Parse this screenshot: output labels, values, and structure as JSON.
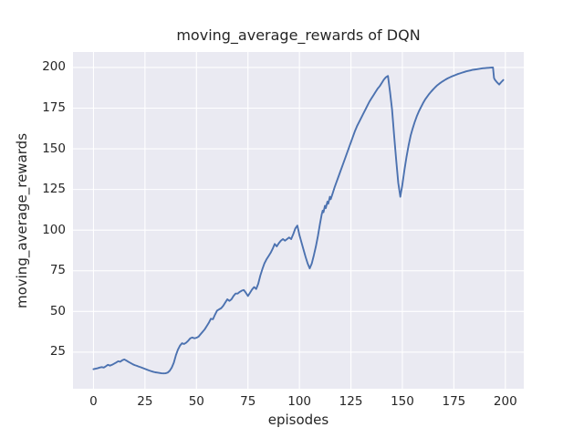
{
  "figure": {
    "title": "moving_average_rewards of DQN",
    "xlabel": "episodes",
    "ylabel": "moving_average_rewards"
  },
  "chart_data": {
    "type": "line",
    "title": "moving_average_rewards of DQN",
    "xlabel": "episodes",
    "ylabel": "moving_average_rewards",
    "xlim": [
      -9.95,
      208.95
    ],
    "ylim": [
      2.5,
      209.5
    ],
    "x_ticks": [
      0,
      25,
      50,
      75,
      100,
      125,
      150,
      175,
      200
    ],
    "y_ticks": [
      25,
      50,
      75,
      100,
      125,
      150,
      175,
      200
    ],
    "grid": true,
    "legend": "none",
    "colors": {
      "line": "#4c72b0",
      "plot_background": "#eaeaf2",
      "figure_background": "#ffffff",
      "gridline": "#ffffff",
      "text": "#262626"
    },
    "series": [
      {
        "name": "moving_average_rewards",
        "points": [
          [
            0,
            14.5
          ],
          [
            1,
            14.8
          ],
          [
            2,
            15.1
          ],
          [
            3,
            15.5
          ],
          [
            4,
            15.8
          ],
          [
            5,
            15.5
          ],
          [
            6,
            16.3
          ],
          [
            7,
            17.2
          ],
          [
            8,
            16.7
          ],
          [
            9,
            17.2
          ],
          [
            10,
            17.9
          ],
          [
            11,
            18.6
          ],
          [
            12,
            19.4
          ],
          [
            13,
            19.1
          ],
          [
            14,
            20.0
          ],
          [
            15,
            20.5
          ],
          [
            16,
            19.8
          ],
          [
            17,
            19.0
          ],
          [
            18,
            18.3
          ],
          [
            19,
            17.6
          ],
          [
            20,
            17.0
          ],
          [
            21,
            16.6
          ],
          [
            22,
            16.1
          ],
          [
            23,
            15.7
          ],
          [
            24,
            15.2
          ],
          [
            25,
            14.7
          ],
          [
            26,
            14.2
          ],
          [
            27,
            13.7
          ],
          [
            28,
            13.3
          ],
          [
            29,
            12.9
          ],
          [
            30,
            12.6
          ],
          [
            31,
            12.4
          ],
          [
            32,
            12.2
          ],
          [
            33,
            12.0
          ],
          [
            34,
            11.9
          ],
          [
            35,
            12.0
          ],
          [
            36,
            12.4
          ],
          [
            37,
            13.5
          ],
          [
            38,
            15.5
          ],
          [
            39,
            18.5
          ],
          [
            40,
            23.0
          ],
          [
            41,
            26.5
          ],
          [
            42,
            29.0
          ],
          [
            43,
            30.5
          ],
          [
            44,
            30.0
          ],
          [
            45,
            30.8
          ],
          [
            46,
            32.0
          ],
          [
            47,
            33.5
          ],
          [
            48,
            34.0
          ],
          [
            49,
            33.5
          ],
          [
            50,
            33.8
          ],
          [
            51,
            34.5
          ],
          [
            52,
            36.0
          ],
          [
            53,
            37.5
          ],
          [
            54,
            39.0
          ],
          [
            55,
            41.0
          ],
          [
            56,
            43.0
          ],
          [
            57,
            45.5
          ],
          [
            58,
            45.2
          ],
          [
            59,
            48.0
          ],
          [
            60,
            50.5
          ],
          [
            61,
            51.3
          ],
          [
            62,
            52.0
          ],
          [
            63,
            53.5
          ],
          [
            64,
            55.5
          ],
          [
            65,
            57.5
          ],
          [
            66,
            56.5
          ],
          [
            67,
            57.5
          ],
          [
            68,
            59.5
          ],
          [
            69,
            61.0
          ],
          [
            70,
            61.0
          ],
          [
            71,
            62.0
          ],
          [
            72,
            62.8
          ],
          [
            73,
            63.2
          ],
          [
            74,
            61.5
          ],
          [
            75,
            59.5
          ],
          [
            76,
            61.5
          ],
          [
            77,
            63.5
          ],
          [
            78,
            65.0
          ],
          [
            79,
            63.8
          ],
          [
            80,
            67.0
          ],
          [
            81,
            72.0
          ],
          [
            82,
            76.0
          ],
          [
            83,
            79.5
          ],
          [
            84,
            82.0
          ],
          [
            85,
            84.0
          ],
          [
            86,
            86.0
          ],
          [
            87,
            88.5
          ],
          [
            88,
            91.5
          ],
          [
            89,
            90.0
          ],
          [
            90,
            92.0
          ],
          [
            91,
            93.5
          ],
          [
            92,
            94.5
          ],
          [
            93,
            93.5
          ],
          [
            94,
            94.5
          ],
          [
            95,
            95.5
          ],
          [
            96,
            94.5
          ],
          [
            97,
            97.5
          ],
          [
            98,
            101.0
          ],
          [
            99,
            102.8
          ],
          [
            100,
            97.0
          ],
          [
            101,
            92.5
          ],
          [
            102,
            88.0
          ],
          [
            103,
            83.5
          ],
          [
            104,
            79.5
          ],
          [
            105,
            76.5
          ],
          [
            106,
            79.5
          ],
          [
            107,
            84.5
          ],
          [
            108,
            90.0
          ],
          [
            109,
            96.5
          ],
          [
            110,
            104.0
          ],
          [
            110.8,
            109.5
          ],
          [
            111.3,
            112.0
          ],
          [
            111.7,
            111.0
          ],
          [
            112.4,
            115.0
          ],
          [
            112.8,
            113.5
          ],
          [
            113.6,
            117.5
          ],
          [
            114,
            116.2
          ],
          [
            114.8,
            120.5
          ],
          [
            115.2,
            119.0
          ],
          [
            116,
            122.0
          ],
          [
            117,
            126.0
          ],
          [
            118,
            129.5
          ],
          [
            119,
            133.0
          ],
          [
            120,
            136.5
          ],
          [
            121,
            140.0
          ],
          [
            122,
            143.5
          ],
          [
            123,
            147.0
          ],
          [
            124,
            150.5
          ],
          [
            125,
            154.0
          ],
          [
            126,
            157.5
          ],
          [
            127,
            161.0
          ],
          [
            128,
            164.0
          ],
          [
            129,
            166.5
          ],
          [
            130,
            169.0
          ],
          [
            131,
            171.5
          ],
          [
            132,
            174.0
          ],
          [
            133,
            176.5
          ],
          [
            134,
            179.0
          ],
          [
            135,
            181.0
          ],
          [
            136,
            183.0
          ],
          [
            137,
            185.0
          ],
          [
            138,
            187.0
          ],
          [
            139,
            188.5
          ],
          [
            140,
            190.5
          ],
          [
            141,
            192.5
          ],
          [
            142,
            194.0
          ],
          [
            143,
            194.8
          ],
          [
            144,
            185.0
          ],
          [
            145,
            174.0
          ],
          [
            146,
            158.0
          ],
          [
            147,
            143.0
          ],
          [
            148,
            129.0
          ],
          [
            149,
            120.5
          ],
          [
            150,
            128.0
          ],
          [
            151,
            137.0
          ],
          [
            152,
            145.0
          ],
          [
            153,
            152.0
          ],
          [
            154,
            158.0
          ],
          [
            155,
            162.5
          ],
          [
            156,
            166.5
          ],
          [
            157,
            170.0
          ],
          [
            158,
            173.0
          ],
          [
            159,
            175.5
          ],
          [
            160,
            178.0
          ],
          [
            161,
            180.2
          ],
          [
            162,
            182.0
          ],
          [
            163,
            183.7
          ],
          [
            164,
            185.2
          ],
          [
            165,
            186.6
          ],
          [
            166,
            187.9
          ],
          [
            167,
            189.1
          ],
          [
            168,
            190.1
          ],
          [
            169,
            191.0
          ],
          [
            170,
            191.8
          ],
          [
            171,
            192.6
          ],
          [
            172,
            193.3
          ],
          [
            173,
            193.9
          ],
          [
            174,
            194.5
          ],
          [
            175,
            195.0
          ],
          [
            176,
            195.5
          ],
          [
            177,
            196.0
          ],
          [
            178,
            196.4
          ],
          [
            179,
            196.8
          ],
          [
            180,
            197.2
          ],
          [
            181,
            197.6
          ],
          [
            182,
            197.9
          ],
          [
            183,
            198.2
          ],
          [
            184,
            198.5
          ],
          [
            185,
            198.7
          ],
          [
            186,
            198.9
          ],
          [
            187,
            199.1
          ],
          [
            188,
            199.3
          ],
          [
            189,
            199.5
          ],
          [
            190,
            199.6
          ],
          [
            191,
            199.7
          ],
          [
            192,
            199.8
          ],
          [
            193,
            199.9
          ],
          [
            194,
            200.0
          ],
          [
            194.5,
            193.5
          ],
          [
            195,
            192.3
          ],
          [
            196,
            190.8
          ],
          [
            197,
            189.5
          ],
          [
            198,
            191.0
          ],
          [
            199,
            192.3
          ]
        ]
      }
    ]
  }
}
